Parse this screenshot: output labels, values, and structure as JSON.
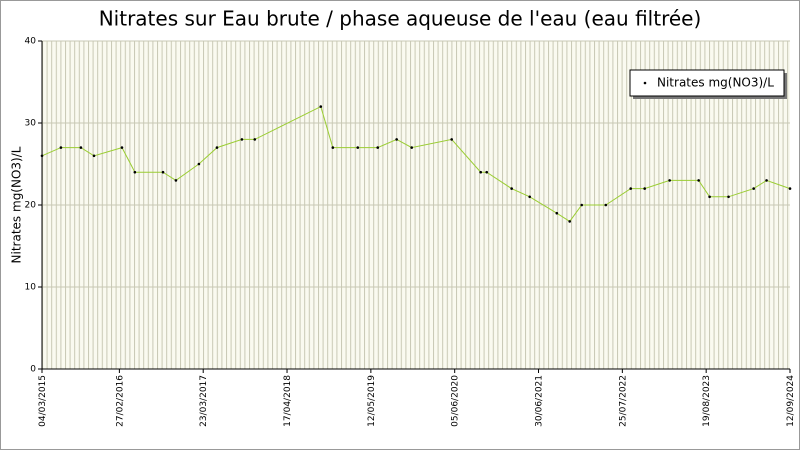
{
  "chart_data": {
    "type": "line",
    "title": "Nitrates sur Eau brute / phase aqueuse de l'eau (eau filtrée)",
    "y_label": "Nitrates mg(NO3)/L",
    "x": [
      "2015-03-04",
      "2015-05-31",
      "2015-09-01",
      "2015-11-01",
      "2016-03-10",
      "2016-05-09",
      "2016-09-17",
      "2016-11-16",
      "2017-03-03",
      "2017-05-26",
      "2017-09-19",
      "2017-11-18",
      "2018-09-21",
      "2018-11-16",
      "2019-03-12",
      "2019-06-13",
      "2019-09-09",
      "2019-11-18",
      "2020-05-22",
      "2020-10-04",
      "2020-11-01",
      "2021-02-25",
      "2021-05-20",
      "2021-09-23",
      "2021-11-22",
      "2022-01-17",
      "2022-05-09",
      "2022-09-02",
      "2022-11-06",
      "2023-03-02",
      "2023-07-15",
      "2023-09-04",
      "2023-12-01",
      "2024-03-27",
      "2024-05-26",
      "2024-09-12"
    ],
    "series": [
      {
        "name": "Nitrates mg(NO3)/L",
        "color": "#9acd32",
        "marker_color": "#000000",
        "values": [
          26,
          27,
          27,
          26,
          27,
          24,
          24,
          23,
          25,
          27,
          28,
          28,
          32,
          27,
          27,
          27,
          28,
          27,
          28,
          24,
          24,
          22,
          21,
          19,
          18,
          20,
          20,
          22,
          22,
          23,
          23,
          21,
          21,
          22,
          23,
          22
        ]
      }
    ],
    "xlim": [
      "2015-03-04",
      "2024-09-12"
    ],
    "xticks": [
      {
        "value": "2015-03-04",
        "label": "04/03/2015"
      },
      {
        "value": "2016-02-27",
        "label": "27/02/2016"
      },
      {
        "value": "2017-03-23",
        "label": "23/03/2017"
      },
      {
        "value": "2018-04-17",
        "label": "17/04/2018"
      },
      {
        "value": "2019-05-12",
        "label": "12/05/2019"
      },
      {
        "value": "2020-06-05",
        "label": "05/06/2020"
      },
      {
        "value": "2021-06-30",
        "label": "30/06/2021"
      },
      {
        "value": "2022-07-25",
        "label": "25/07/2022"
      },
      {
        "value": "2023-08-19",
        "label": "19/08/2023"
      },
      {
        "value": "2024-09-12",
        "label": "12/09/2024"
      }
    ],
    "ylim": [
      0,
      40
    ],
    "yticks": [
      0,
      10,
      20,
      30,
      40
    ],
    "grid": true,
    "legend": "top-right"
  }
}
